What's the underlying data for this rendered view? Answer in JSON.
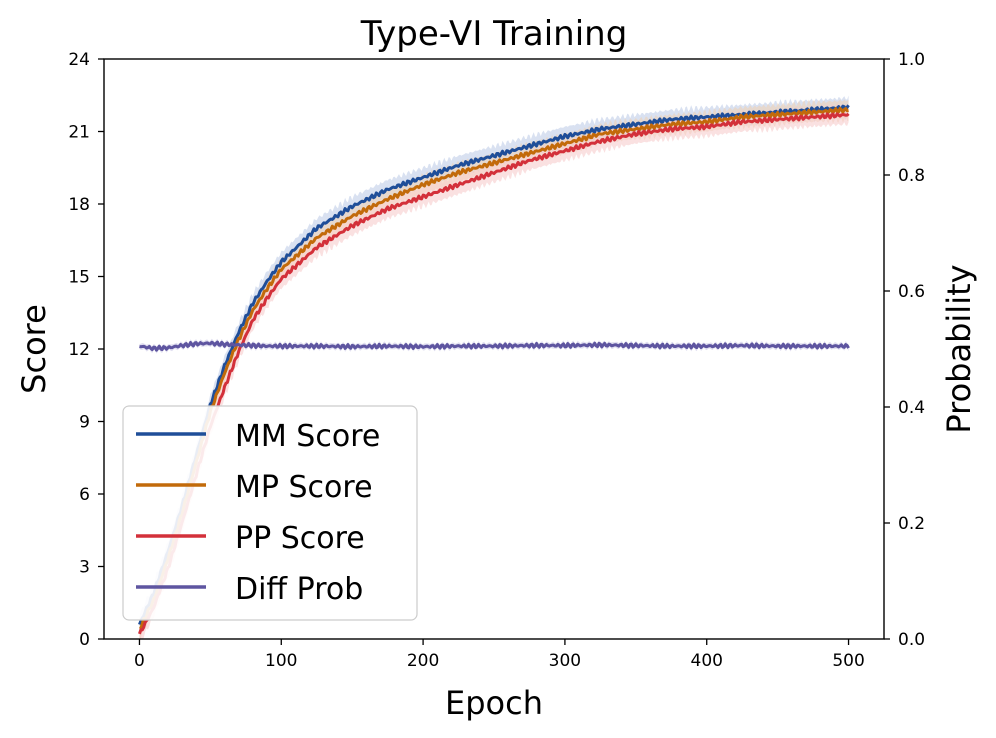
{
  "chart_data": {
    "type": "line",
    "title": "Type-VI Training",
    "xlabel": "Epoch",
    "ylabel": "Score",
    "y2label": "Probability",
    "xlim": [
      -25,
      525
    ],
    "ylim": [
      0,
      24
    ],
    "y2lim": [
      0.0,
      1.0
    ],
    "xticks": [
      0,
      100,
      200,
      300,
      400,
      500
    ],
    "yticks": [
      0,
      3,
      6,
      9,
      12,
      15,
      18,
      21,
      24
    ],
    "y2ticks": [
      "0.0",
      "0.2",
      "0.4",
      "0.6",
      "0.8",
      "1.0"
    ],
    "legend_position": "lower-left",
    "series": [
      {
        "name": "MM Score",
        "axis": "left",
        "color": "#1f4e99",
        "band_color": "#b9c9e6",
        "x": [
          0,
          10,
          20,
          30,
          40,
          50,
          60,
          70,
          80,
          90,
          100,
          125,
          150,
          175,
          200,
          225,
          250,
          275,
          300,
          325,
          350,
          375,
          400,
          425,
          450,
          475,
          500
        ],
        "values": [
          0.6,
          1.9,
          3.6,
          5.5,
          7.6,
          9.7,
          11.3,
          12.7,
          13.9,
          14.8,
          15.6,
          17.0,
          17.9,
          18.6,
          19.1,
          19.6,
          20.0,
          20.4,
          20.8,
          21.1,
          21.3,
          21.5,
          21.6,
          21.7,
          21.8,
          21.9,
          22.0
        ]
      },
      {
        "name": "MP Score",
        "axis": "left",
        "color": "#c26a0a",
        "band_color": "#f0d2b0",
        "x": [
          0,
          10,
          20,
          30,
          40,
          50,
          60,
          70,
          80,
          90,
          100,
          125,
          150,
          175,
          200,
          225,
          250,
          275,
          300,
          325,
          350,
          375,
          400,
          425,
          450,
          475,
          500
        ],
        "values": [
          0.4,
          1.6,
          3.3,
          5.2,
          7.3,
          9.4,
          11.0,
          12.4,
          13.6,
          14.5,
          15.3,
          16.6,
          17.5,
          18.2,
          18.8,
          19.3,
          19.7,
          20.1,
          20.5,
          20.9,
          21.1,
          21.3,
          21.4,
          21.6,
          21.7,
          21.8,
          21.9
        ]
      },
      {
        "name": "PP Score",
        "axis": "left",
        "color": "#d3303a",
        "band_color": "#f5c8c8",
        "x": [
          0,
          10,
          20,
          30,
          40,
          50,
          60,
          70,
          80,
          90,
          100,
          125,
          150,
          175,
          200,
          225,
          250,
          275,
          300,
          325,
          350,
          375,
          400,
          425,
          450,
          475,
          500
        ],
        "values": [
          0.2,
          1.3,
          2.9,
          4.8,
          6.8,
          8.8,
          10.4,
          11.9,
          13.2,
          14.1,
          14.9,
          16.2,
          17.1,
          17.8,
          18.3,
          18.8,
          19.3,
          19.8,
          20.2,
          20.6,
          20.9,
          21.1,
          21.2,
          21.4,
          21.5,
          21.6,
          21.7
        ]
      },
      {
        "name": "Diff Prob",
        "axis": "right",
        "color": "#5e55a0",
        "band_color": "#c9c5e3",
        "x": [
          0,
          10,
          20,
          30,
          40,
          50,
          60,
          70,
          80,
          90,
          100,
          125,
          150,
          175,
          200,
          225,
          250,
          275,
          300,
          325,
          350,
          375,
          400,
          425,
          450,
          475,
          500
        ],
        "values": [
          0.505,
          0.501,
          0.502,
          0.506,
          0.509,
          0.51,
          0.508,
          0.507,
          0.506,
          0.505,
          0.505,
          0.505,
          0.504,
          0.505,
          0.504,
          0.505,
          0.505,
          0.506,
          0.506,
          0.507,
          0.506,
          0.505,
          0.505,
          0.506,
          0.505,
          0.505,
          0.505
        ]
      }
    ]
  }
}
